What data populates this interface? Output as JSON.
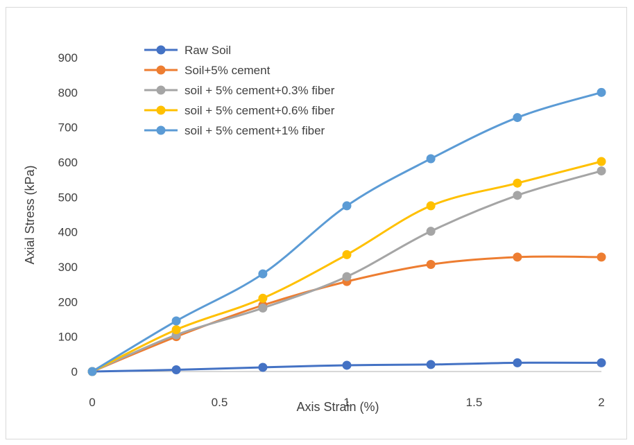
{
  "chart_data": {
    "type": "line",
    "title": "",
    "xlabel": "Axis Strain (%)",
    "ylabel": "Axial Stress (kPa)",
    "xlim": [
      0,
      2
    ],
    "ylim": [
      0,
      900
    ],
    "x_ticks": [
      "0",
      "0.5",
      "1",
      "1.5",
      "2"
    ],
    "y_ticks": [
      "0",
      "100",
      "200",
      "300",
      "400",
      "500",
      "600",
      "700",
      "800",
      "900"
    ],
    "grid": false,
    "legend_position": "top-left",
    "x": [
      0,
      0.33,
      0.67,
      1.0,
      1.33,
      1.67,
      2.0
    ],
    "series": [
      {
        "name": "Raw Soil",
        "color": "#4472C4",
        "values": [
          0,
          5,
          12,
          18,
          20,
          25,
          25
        ]
      },
      {
        "name": "Soil+5% cement",
        "color": "#ED7D31",
        "values": [
          0,
          100,
          190,
          258,
          307,
          328,
          328
        ]
      },
      {
        "name": "soil + 5% cement+0.3% fiber",
        "color": "#A5A5A5",
        "values": [
          0,
          105,
          182,
          272,
          402,
          505,
          575
        ]
      },
      {
        "name": "soil + 5% cement+0.6% fiber",
        "color": "#FFC000",
        "values": [
          0,
          120,
          210,
          335,
          475,
          540,
          602
        ]
      },
      {
        "name": "soil + 5% cement+1% fiber",
        "color": "#5B9BD5",
        "values": [
          0,
          145,
          280,
          475,
          610,
          728,
          800
        ]
      }
    ]
  }
}
